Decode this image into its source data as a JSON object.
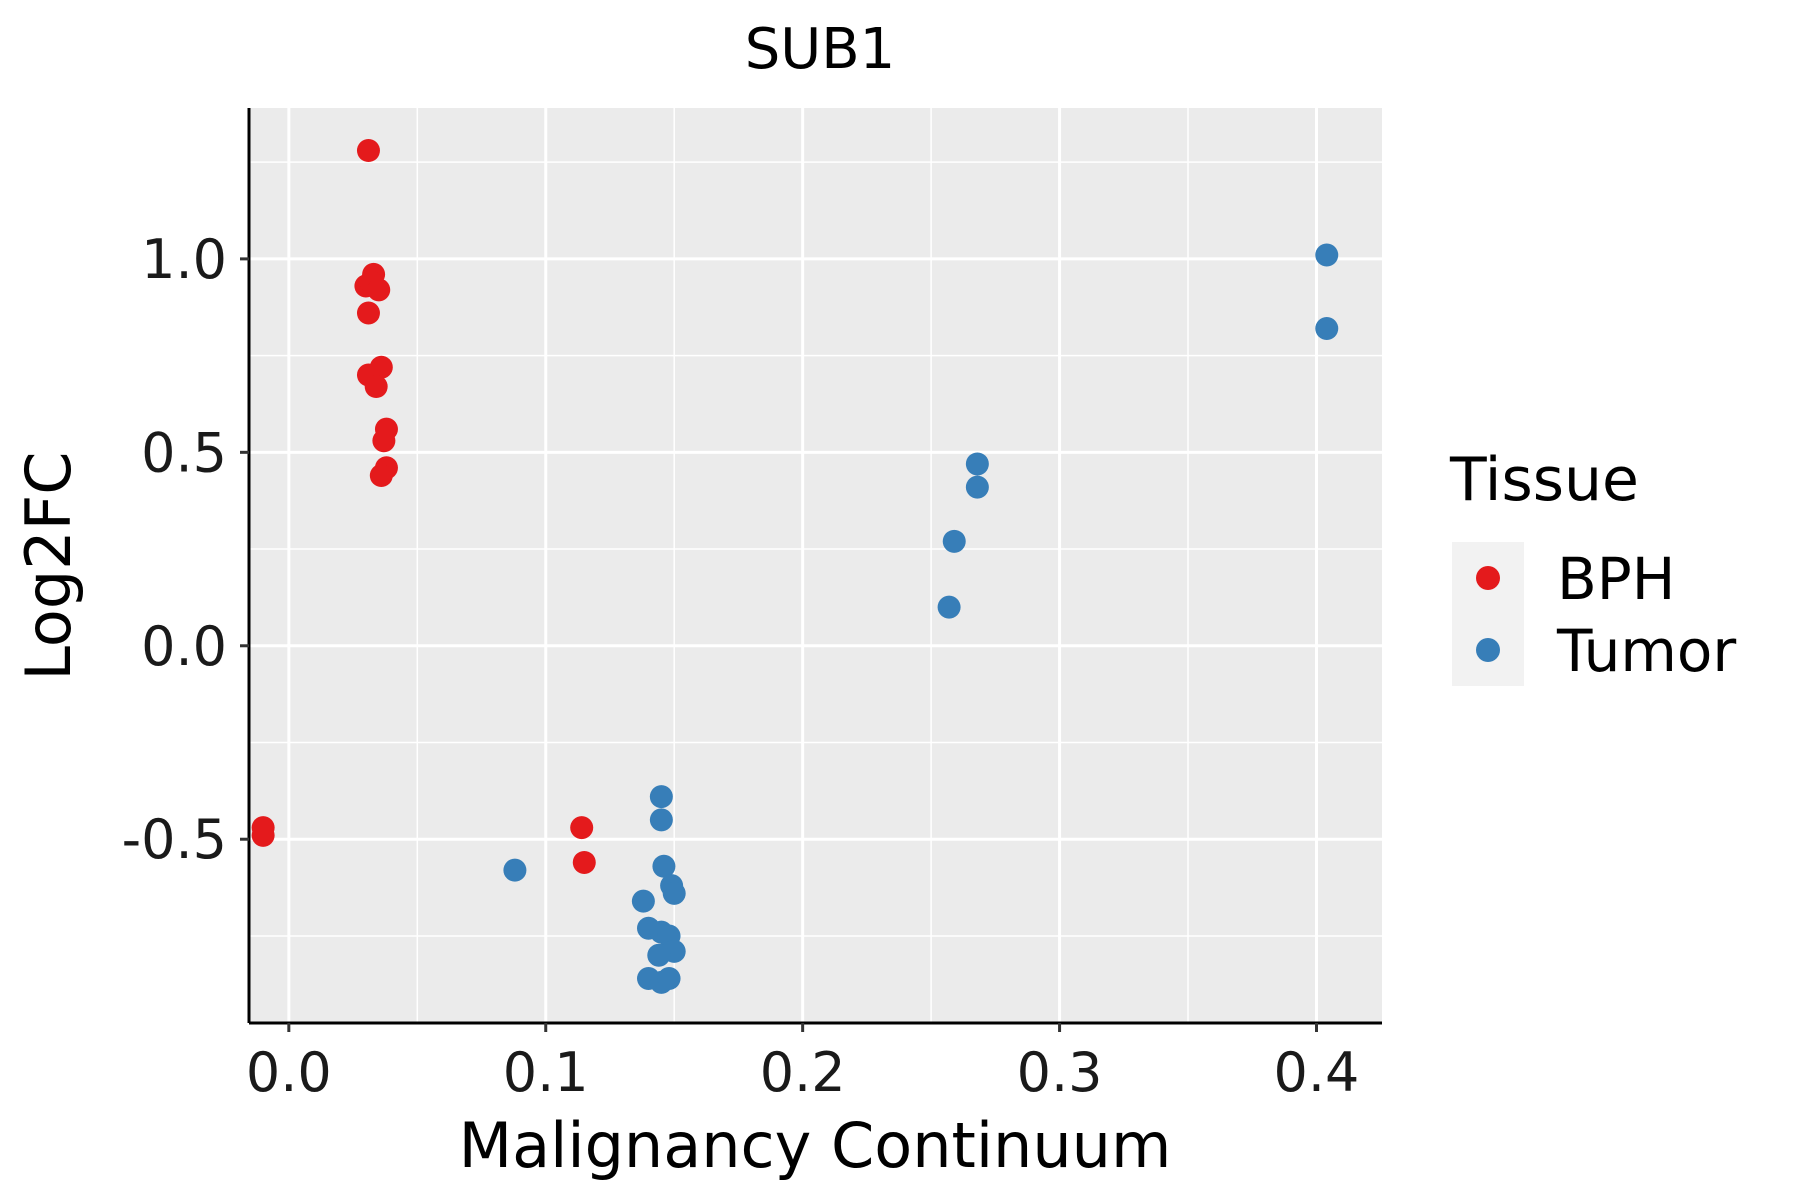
{
  "chart_data": {
    "type": "scatter",
    "title": "SUB1",
    "xlabel": "Malignancy Continuum",
    "ylabel": "Log2FC",
    "xlim": [
      -0.0155,
      0.4255
    ],
    "ylim": [
      -0.975,
      1.39
    ],
    "xticks": [
      0.0,
      0.1,
      0.2,
      0.3,
      0.4
    ],
    "xtick_labels": [
      "0.0",
      "0.1",
      "0.2",
      "0.3",
      "0.4"
    ],
    "yticks": [
      -0.5,
      0.0,
      0.5,
      1.0
    ],
    "ytick_labels": [
      "-0.5",
      "0.0",
      "0.5",
      "1.0"
    ],
    "grid": true,
    "legend": {
      "title": "Tissue",
      "position": "right",
      "entries": [
        "BPH",
        "Tumor"
      ]
    },
    "series": [
      {
        "name": "BPH",
        "color": "#e41a1c",
        "points": [
          [
            0.031,
            1.28
          ],
          [
            0.033,
            0.96
          ],
          [
            0.03,
            0.93
          ],
          [
            0.032,
            0.94
          ],
          [
            0.035,
            0.92
          ],
          [
            0.031,
            0.86
          ],
          [
            0.036,
            0.72
          ],
          [
            0.031,
            0.7
          ],
          [
            0.034,
            0.67
          ],
          [
            0.038,
            0.56
          ],
          [
            0.037,
            0.53
          ],
          [
            0.038,
            0.46
          ],
          [
            0.036,
            0.44
          ],
          [
            -0.01,
            -0.47
          ],
          [
            -0.01,
            -0.49
          ],
          [
            0.114,
            -0.47
          ],
          [
            0.115,
            -0.56
          ]
        ]
      },
      {
        "name": "Tumor",
        "color": "#377eb8",
        "points": [
          [
            0.404,
            1.01
          ],
          [
            0.404,
            0.82
          ],
          [
            0.268,
            0.47
          ],
          [
            0.268,
            0.41
          ],
          [
            0.259,
            0.27
          ],
          [
            0.257,
            0.1
          ],
          [
            0.088,
            -0.58
          ],
          [
            0.145,
            -0.39
          ],
          [
            0.145,
            -0.45
          ],
          [
            0.146,
            -0.57
          ],
          [
            0.149,
            -0.62
          ],
          [
            0.15,
            -0.64
          ],
          [
            0.138,
            -0.66
          ],
          [
            0.14,
            -0.73
          ],
          [
            0.145,
            -0.74
          ],
          [
            0.148,
            -0.75
          ],
          [
            0.15,
            -0.79
          ],
          [
            0.144,
            -0.8
          ],
          [
            0.14,
            -0.86
          ],
          [
            0.145,
            -0.87
          ],
          [
            0.148,
            -0.86
          ]
        ]
      }
    ]
  }
}
